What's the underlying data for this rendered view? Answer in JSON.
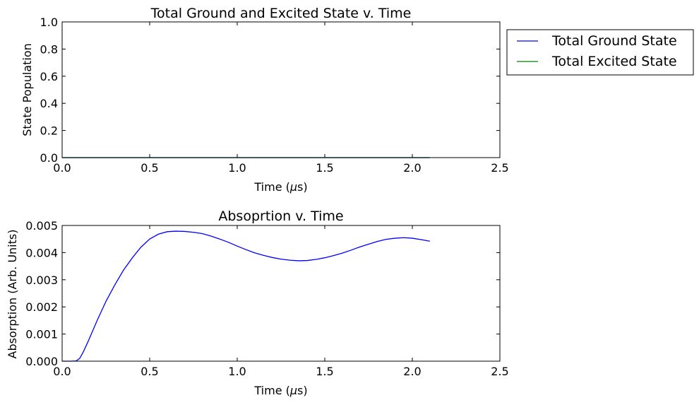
{
  "chart_data": [
    {
      "type": "line",
      "title": "Total Ground and Excited State v. Time",
      "xlabel_main": "Time (",
      "xlabel_unit": "μ",
      "xlabel_tail": "s)",
      "ylabel": "State Population",
      "xlim": [
        0.0,
        2.5
      ],
      "ylim": [
        0.0,
        1.0
      ],
      "xticks": [
        "0.0",
        "0.5",
        "1.0",
        "1.5",
        "2.0",
        "2.5"
      ],
      "yticks": [
        "0.0",
        "0.2",
        "0.4",
        "0.6",
        "0.8",
        "1.0"
      ],
      "legend_position": "outside-right-top",
      "series": [
        {
          "name": "Total Ground State",
          "color": "#0000ff",
          "x": [
            0.0,
            0.5,
            1.0,
            1.5,
            2.0,
            2.1
          ],
          "y": [
            0.0,
            0.0,
            0.0,
            0.0,
            0.0,
            0.0
          ]
        },
        {
          "name": "Total Excited State",
          "color": "#008000",
          "x": [
            0.0,
            0.5,
            1.0,
            1.5,
            2.0,
            2.1
          ],
          "y": [
            0.0,
            0.0,
            0.0,
            0.0,
            0.0,
            0.0
          ]
        }
      ]
    },
    {
      "type": "line",
      "title": "Absoprtion v. Time",
      "xlabel_main": "Time (",
      "xlabel_unit": "μ",
      "xlabel_tail": "s)",
      "ylabel": "Absorption (Arb. Units)",
      "xlim": [
        0.0,
        2.5
      ],
      "ylim": [
        0.0,
        0.005
      ],
      "xticks": [
        "0.0",
        "0.5",
        "1.0",
        "1.5",
        "2.0",
        "2.5"
      ],
      "yticks": [
        "0.000",
        "0.001",
        "0.002",
        "0.003",
        "0.004",
        "0.005"
      ],
      "series": [
        {
          "color": "#0000ff",
          "x": [
            0.0,
            0.05,
            0.08,
            0.1,
            0.12,
            0.15,
            0.2,
            0.25,
            0.3,
            0.35,
            0.4,
            0.45,
            0.5,
            0.55,
            0.6,
            0.65,
            0.7,
            0.75,
            0.8,
            0.85,
            0.9,
            0.95,
            1.0,
            1.05,
            1.1,
            1.15,
            1.2,
            1.25,
            1.3,
            1.35,
            1.4,
            1.45,
            1.5,
            1.55,
            1.6,
            1.65,
            1.7,
            1.75,
            1.8,
            1.85,
            1.9,
            1.95,
            2.0,
            2.05,
            2.1
          ],
          "y": [
            0.0,
            0.0,
            1e-05,
            0.0001,
            0.00033,
            0.00075,
            0.0015,
            0.0022,
            0.0028,
            0.00335,
            0.0038,
            0.0042,
            0.0045,
            0.00468,
            0.00477,
            0.00479,
            0.00478,
            0.00475,
            0.0047,
            0.00461,
            0.0045,
            0.00438,
            0.00424,
            0.00411,
            0.00399,
            0.0039,
            0.00382,
            0.00376,
            0.00372,
            0.0037,
            0.00371,
            0.00375,
            0.00381,
            0.00389,
            0.00398,
            0.00409,
            0.00421,
            0.00431,
            0.00441,
            0.00449,
            0.00453,
            0.00455,
            0.00453,
            0.00448,
            0.00442
          ]
        }
      ]
    }
  ]
}
